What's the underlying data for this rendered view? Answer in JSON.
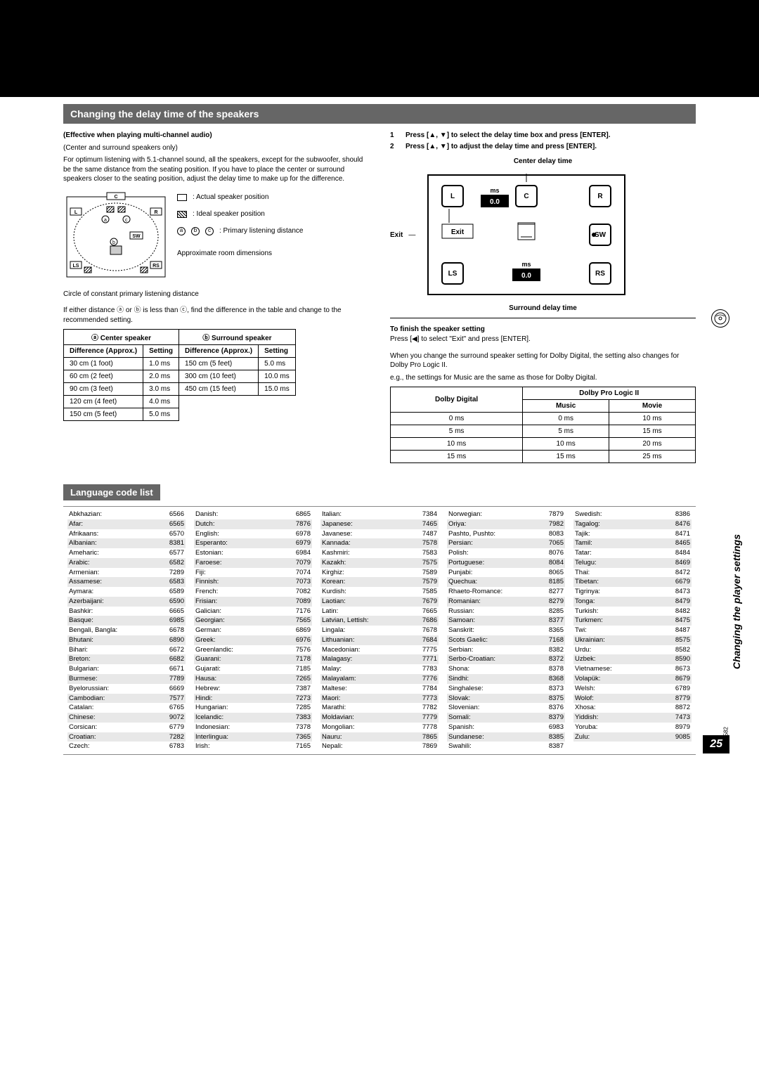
{
  "page": {
    "number": "25",
    "doc_code": "RQT6582",
    "side_label": "Changing the player settings"
  },
  "section1": {
    "title": "Changing the delay time of the speakers",
    "effective_label": "(Effective when playing multi-channel audio)",
    "center_surround_only": "(Center and surround speakers only)",
    "intro": "For optimum listening with 5.1-channel sound, all the speakers, except for the subwoofer, should be the same distance from the seating position. If you have to place the center or surround speakers closer to the seating position, adjust the delay time to make up for the difference.",
    "legend": {
      "actual": ": Actual speaker position",
      "ideal": ": Ideal speaker position",
      "primary": ": Primary listening distance",
      "approx": "Approximate room dimensions"
    },
    "circle_note": "Circle of constant primary listening distance",
    "if_note": "If either distance ⓐ or ⓑ is less than ⓒ, find the difference in the table and change to the recommended setting.",
    "table_left": {
      "h1": "ⓐ Center speaker",
      "h2": "ⓑ Surround speaker",
      "sub_diff": "Difference (Approx.)",
      "sub_set": "Setting",
      "rows": [
        [
          "30 cm (1 foot)",
          "1.0 ms",
          "150 cm (5 feet)",
          "5.0 ms"
        ],
        [
          "60 cm (2 feet)",
          "2.0 ms",
          "300 cm (10 feet)",
          "10.0 ms"
        ],
        [
          "90 cm (3 feet)",
          "3.0 ms",
          "450 cm (15 feet)",
          "15.0 ms"
        ],
        [
          "120 cm (4 feet)",
          "4.0 ms",
          "",
          ""
        ],
        [
          "150 cm (5 feet)",
          "5.0 ms",
          "",
          ""
        ]
      ]
    },
    "steps": [
      "Press [▲, ▼] to select the delay time box and press [ENTER].",
      "Press [▲, ▼] to adjust the delay time and press [ENTER]."
    ],
    "ui": {
      "center_delay_label": "Center delay time",
      "surround_delay_label": "Surround delay time",
      "exit_label": "Exit",
      "exit_btn": "Exit",
      "ms": "ms",
      "val_center": "0.0",
      "val_surround": "0.0",
      "L": "L",
      "C": "C",
      "R": "R",
      "SW": "SW",
      "LS": "LS",
      "RS": "RS"
    },
    "finish_heading": "To finish the speaker setting",
    "finish_text": "Press [◀] to select \"Exit\" and press [ENTER].",
    "change_note": "When you change the surround speaker setting for Dolby Digital, the setting also changes for Dolby Pro Logic II.",
    "eg_note": "e.g., the settings for Music are the same as those for Dolby Digital.",
    "table_right": {
      "h_dolby": "Dolby Digital",
      "h_pro": "Dolby Pro Logic II",
      "h_music": "Music",
      "h_movie": "Movie",
      "rows": [
        [
          "0 ms",
          "0 ms",
          "10 ms"
        ],
        [
          "5 ms",
          "5 ms",
          "15 ms"
        ],
        [
          "10 ms",
          "10 ms",
          "20 ms"
        ],
        [
          "15 ms",
          "15 ms",
          "25 ms"
        ]
      ]
    }
  },
  "lang": {
    "title": "Language code list",
    "cols": [
      [
        [
          "Abkhazian:",
          "6566"
        ],
        [
          "Afar:",
          "6565"
        ],
        [
          "Afrikaans:",
          "6570"
        ],
        [
          "Albanian:",
          "8381"
        ],
        [
          "Ameharic:",
          "6577"
        ],
        [
          "Arabic:",
          "6582"
        ],
        [
          "Armenian:",
          "7289"
        ],
        [
          "Assamese:",
          "6583"
        ],
        [
          "Aymara:",
          "6589"
        ],
        [
          "Azerbaijani:",
          "6590"
        ],
        [
          "Bashkir:",
          "6665"
        ],
        [
          "Basque:",
          "6985"
        ],
        [
          "Bengali, Bangla:",
          "6678"
        ],
        [
          "Bhutani:",
          "6890"
        ],
        [
          "Bihari:",
          "6672"
        ],
        [
          "Breton:",
          "6682"
        ],
        [
          "Bulgarian:",
          "6671"
        ],
        [
          "Burmese:",
          "7789"
        ],
        [
          "Byelorussian:",
          "6669"
        ],
        [
          "Cambodian:",
          "7577"
        ],
        [
          "Catalan:",
          "6765"
        ],
        [
          "Chinese:",
          "9072"
        ],
        [
          "Corsican:",
          "6779"
        ],
        [
          "Croatian:",
          "7282"
        ],
        [
          "Czech:",
          "6783"
        ]
      ],
      [
        [
          "Danish:",
          "6865"
        ],
        [
          "Dutch:",
          "7876"
        ],
        [
          "English:",
          "6978"
        ],
        [
          "Esperanto:",
          "6979"
        ],
        [
          "Estonian:",
          "6984"
        ],
        [
          "Faroese:",
          "7079"
        ],
        [
          "Fiji:",
          "7074"
        ],
        [
          "Finnish:",
          "7073"
        ],
        [
          "French:",
          "7082"
        ],
        [
          "Frisian:",
          "7089"
        ],
        [
          "Galician:",
          "7176"
        ],
        [
          "Georgian:",
          "7565"
        ],
        [
          "German:",
          "6869"
        ],
        [
          "Greek:",
          "6976"
        ],
        [
          "Greenlandic:",
          "7576"
        ],
        [
          "Guarani:",
          "7178"
        ],
        [
          "Gujarati:",
          "7185"
        ],
        [
          "Hausa:",
          "7265"
        ],
        [
          "Hebrew:",
          "7387"
        ],
        [
          "Hindi:",
          "7273"
        ],
        [
          "Hungarian:",
          "7285"
        ],
        [
          "Icelandic:",
          "7383"
        ],
        [
          "Indonesian:",
          "7378"
        ],
        [
          "Interlingua:",
          "7365"
        ],
        [
          "Irish:",
          "7165"
        ]
      ],
      [
        [
          "Italian:",
          "7384"
        ],
        [
          "Japanese:",
          "7465"
        ],
        [
          "Javanese:",
          "7487"
        ],
        [
          "Kannada:",
          "7578"
        ],
        [
          "Kashmiri:",
          "7583"
        ],
        [
          "Kazakh:",
          "7575"
        ],
        [
          "Kirghiz:",
          "7589"
        ],
        [
          "Korean:",
          "7579"
        ],
        [
          "Kurdish:",
          "7585"
        ],
        [
          "Laotian:",
          "7679"
        ],
        [
          "Latin:",
          "7665"
        ],
        [
          "Latvian, Lettish:",
          "7686"
        ],
        [
          "Lingala:",
          "7678"
        ],
        [
          "Lithuanian:",
          "7684"
        ],
        [
          "Macedonian:",
          "7775"
        ],
        [
          "Malagasy:",
          "7771"
        ],
        [
          "Malay:",
          "7783"
        ],
        [
          "Malayalam:",
          "7776"
        ],
        [
          "Maltese:",
          "7784"
        ],
        [
          "Maori:",
          "7773"
        ],
        [
          "Marathi:",
          "7782"
        ],
        [
          "Moldavian:",
          "7779"
        ],
        [
          "Mongolian:",
          "7778"
        ],
        [
          "Nauru:",
          "7865"
        ],
        [
          "Nepali:",
          "7869"
        ]
      ],
      [
        [
          "Norwegian:",
          "7879"
        ],
        [
          "Oriya:",
          "7982"
        ],
        [
          "Pashto, Pushto:",
          "8083"
        ],
        [
          "Persian:",
          "7065"
        ],
        [
          "Polish:",
          "8076"
        ],
        [
          "Portuguese:",
          "8084"
        ],
        [
          "Punjabi:",
          "8065"
        ],
        [
          "Quechua:",
          "8185"
        ],
        [
          "Rhaeto-Romance:",
          "8277"
        ],
        [
          "Romanian:",
          "8279"
        ],
        [
          "Russian:",
          "8285"
        ],
        [
          "Samoan:",
          "8377"
        ],
        [
          "Sanskrit:",
          "8365"
        ],
        [
          "Scots Gaelic:",
          "7168"
        ],
        [
          "Serbian:",
          "8382"
        ],
        [
          "Serbo-Croatian:",
          "8372"
        ],
        [
          "Shona:",
          "8378"
        ],
        [
          "Sindhi:",
          "8368"
        ],
        [
          "Singhalese:",
          "8373"
        ],
        [
          "Slovak:",
          "8375"
        ],
        [
          "Slovenian:",
          "8376"
        ],
        [
          "Somali:",
          "8379"
        ],
        [
          "Spanish:",
          "6983"
        ],
        [
          "Sundanese:",
          "8385"
        ],
        [
          "Swahili:",
          "8387"
        ]
      ],
      [
        [
          "Swedish:",
          "8386"
        ],
        [
          "Tagalog:",
          "8476"
        ],
        [
          "Tajik:",
          "8471"
        ],
        [
          "Tamil:",
          "8465"
        ],
        [
          "Tatar:",
          "8484"
        ],
        [
          "Telugu:",
          "8469"
        ],
        [
          "Thai:",
          "8472"
        ],
        [
          "Tibetan:",
          "6679"
        ],
        [
          "Tigrinya:",
          "8473"
        ],
        [
          "Tonga:",
          "8479"
        ],
        [
          "Turkish:",
          "8482"
        ],
        [
          "Turkmen:",
          "8475"
        ],
        [
          "Twi:",
          "8487"
        ],
        [
          "Ukrainian:",
          "8575"
        ],
        [
          "Urdu:",
          "8582"
        ],
        [
          "Uzbek:",
          "8590"
        ],
        [
          "Vietnamese:",
          "8673"
        ],
        [
          "Volapük:",
          "8679"
        ],
        [
          "Welsh:",
          "6789"
        ],
        [
          "Wolof:",
          "8779"
        ],
        [
          "Xhosa:",
          "8872"
        ],
        [
          "Yiddish:",
          "7473"
        ],
        [
          "Yoruba:",
          "8979"
        ],
        [
          "Zulu:",
          "9085"
        ]
      ]
    ]
  }
}
